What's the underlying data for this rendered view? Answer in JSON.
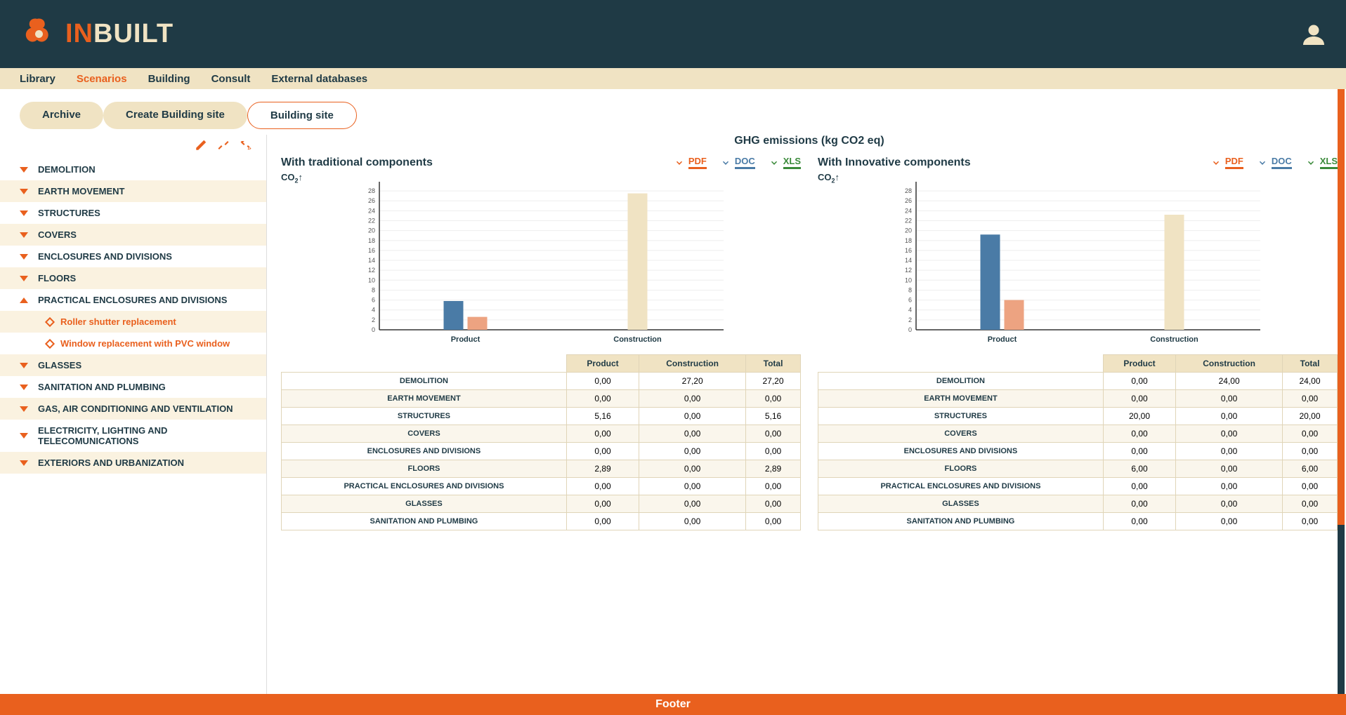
{
  "brand": {
    "prefix": "IN",
    "suffix": "BUILT"
  },
  "nav": {
    "items": [
      {
        "label": "Library",
        "active": false
      },
      {
        "label": "Scenarios",
        "active": true
      },
      {
        "label": "Building",
        "active": false
      },
      {
        "label": "Consult",
        "active": false
      },
      {
        "label": "External databases",
        "active": false
      }
    ]
  },
  "tabs": {
    "items": [
      {
        "label": "Archive",
        "active": false
      },
      {
        "label": "Create Building site",
        "active": false
      },
      {
        "label": "Building site",
        "active": true
      }
    ]
  },
  "tree": {
    "items": [
      {
        "label": "DEMOLITION",
        "expanded": false
      },
      {
        "label": "EARTH MOVEMENT",
        "expanded": false
      },
      {
        "label": "STRUCTURES",
        "expanded": false
      },
      {
        "label": "COVERS",
        "expanded": false
      },
      {
        "label": "ENCLOSURES AND DIVISIONS",
        "expanded": false
      },
      {
        "label": "FLOORS",
        "expanded": false
      },
      {
        "label": "PRACTICAL ENCLOSURES AND DIVISIONS",
        "expanded": true,
        "children": [
          {
            "label": "Roller shutter replacement"
          },
          {
            "label": "Window replacement with PVC window"
          }
        ]
      },
      {
        "label": "GLASSES",
        "expanded": false
      },
      {
        "label": "SANITATION AND PLUMBING",
        "expanded": false
      },
      {
        "label": "GAS, AIR CONDITIONING AND VENTILATION",
        "expanded": false
      },
      {
        "label": "ELECTRICITY, LIGHTING AND TELECOMUNICATIONS",
        "expanded": false
      },
      {
        "label": "EXTERIORS AND URBANIZATION",
        "expanded": false
      }
    ]
  },
  "main_title": "GHG emissions (kg CO2 eq)",
  "export": {
    "pdf": "PDF",
    "doc": "DOC",
    "xls": "XLS"
  },
  "axis_label": "CO",
  "axis_ticks": [
    0,
    2,
    4,
    6,
    8,
    10,
    12,
    14,
    16,
    18,
    20,
    22,
    24,
    26,
    28
  ],
  "chart_categories": [
    "Product",
    "Construction"
  ],
  "colors": {
    "header_bg": "#1f3a45",
    "nav_bg": "#f0e3c3",
    "accent": "#e9601e",
    "bar_blue": "#4a7ba6",
    "bar_peach": "#eda381",
    "bar_cream": "#f0e3c3",
    "grid": "#eeeeee",
    "axis": "#333333"
  },
  "panels": [
    {
      "title": "With traditional components",
      "chart": {
        "ymax": 29,
        "groups": [
          {
            "label": "Product",
            "bars": [
              {
                "value": 5.8,
                "color": "#4a7ba6"
              },
              {
                "value": 2.6,
                "color": "#eda381"
              }
            ]
          },
          {
            "label": "Construction",
            "bars": [
              {
                "value": 27.5,
                "color": "#f0e3c3"
              }
            ]
          }
        ]
      },
      "table": {
        "columns": [
          "",
          "Product",
          "Construction",
          "Total"
        ],
        "rows": [
          [
            "DEMOLITION",
            "0,00",
            "27,20",
            "27,20"
          ],
          [
            "EARTH MOVEMENT",
            "0,00",
            "0,00",
            "0,00"
          ],
          [
            "STRUCTURES",
            "5,16",
            "0,00",
            "5,16"
          ],
          [
            "COVERS",
            "0,00",
            "0,00",
            "0,00"
          ],
          [
            "ENCLOSURES AND DIVISIONS",
            "0,00",
            "0,00",
            "0,00"
          ],
          [
            "FLOORS",
            "2,89",
            "0,00",
            "2,89"
          ],
          [
            "PRACTICAL ENCLOSURES AND DIVISIONS",
            "0,00",
            "0,00",
            "0,00"
          ],
          [
            "GLASSES",
            "0,00",
            "0,00",
            "0,00"
          ],
          [
            "SANITATION AND PLUMBING",
            "0,00",
            "0,00",
            "0,00"
          ]
        ]
      }
    },
    {
      "title": "With Innovative components",
      "chart": {
        "ymax": 29,
        "groups": [
          {
            "label": "Product",
            "bars": [
              {
                "value": 19.2,
                "color": "#4a7ba6"
              },
              {
                "value": 6.0,
                "color": "#eda381"
              }
            ]
          },
          {
            "label": "Construction",
            "bars": [
              {
                "value": 23.2,
                "color": "#f0e3c3"
              }
            ]
          }
        ]
      },
      "table": {
        "columns": [
          "",
          "Product",
          "Construction",
          "Total"
        ],
        "rows": [
          [
            "DEMOLITION",
            "0,00",
            "24,00",
            "24,00"
          ],
          [
            "EARTH MOVEMENT",
            "0,00",
            "0,00",
            "0,00"
          ],
          [
            "STRUCTURES",
            "20,00",
            "0,00",
            "20,00"
          ],
          [
            "COVERS",
            "0,00",
            "0,00",
            "0,00"
          ],
          [
            "ENCLOSURES AND DIVISIONS",
            "0,00",
            "0,00",
            "0,00"
          ],
          [
            "FLOORS",
            "6,00",
            "0,00",
            "6,00"
          ],
          [
            "PRACTICAL ENCLOSURES AND DIVISIONS",
            "0,00",
            "0,00",
            "0,00"
          ],
          [
            "GLASSES",
            "0,00",
            "0,00",
            "0,00"
          ],
          [
            "SANITATION AND PLUMBING",
            "0,00",
            "0,00",
            "0,00"
          ]
        ]
      }
    }
  ],
  "footer": "Footer",
  "scroll": {
    "thumb_top_pct": 72,
    "thumb_height_pct": 28
  }
}
